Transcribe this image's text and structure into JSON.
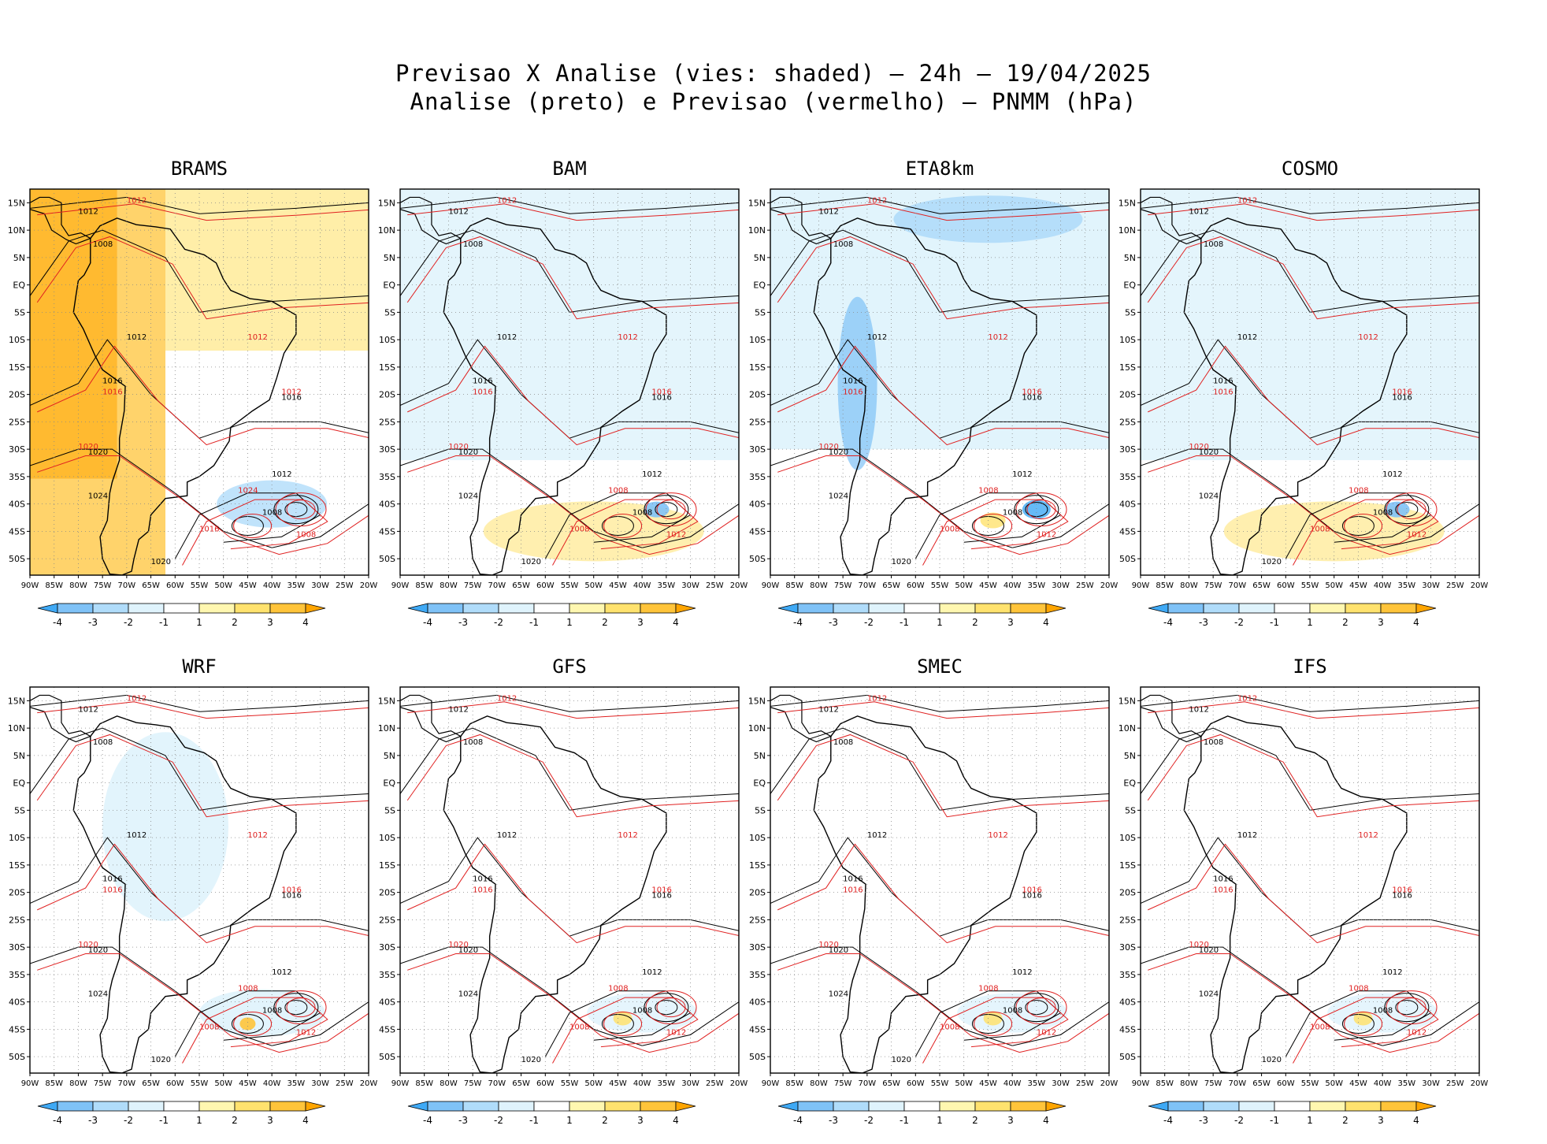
{
  "header": {
    "title_line1": "Previsao X Analise (vies: shaded) – 24h – 19/04/2025",
    "title_line2": "Analise (preto) e Previsao (vermelho) – PNMM (hPa)"
  },
  "axes": {
    "lat_labels": [
      "15N",
      "10N",
      "5N",
      "EQ",
      "5S",
      "10S",
      "15S",
      "20S",
      "25S",
      "30S",
      "35S",
      "40S",
      "45S",
      "50S"
    ],
    "lon_labels": [
      "90W",
      "85W",
      "80W",
      "75W",
      "70W",
      "65W",
      "60W",
      "55W",
      "50W",
      "45W",
      "40W",
      "35W",
      "30W",
      "25W",
      "20W"
    ]
  },
  "colorbar": {
    "labels": [
      "-4",
      "-3",
      "-2",
      "-1",
      "1",
      "2",
      "3",
      "4"
    ],
    "colors": [
      "#3fa9f5",
      "#7fc2f7",
      "#b0dcfa",
      "#dff3fc",
      "#ffffff",
      "#fff7b0",
      "#ffe26e",
      "#ffc43a",
      "#ffa500"
    ]
  },
  "styles": {
    "analysis_color": "#000000",
    "forecast_color": "#e02020",
    "grid_color": "#888888"
  },
  "panels": [
    {
      "name": "BRAMS",
      "bias": "warm-strong",
      "labels_black": [
        "1012",
        "1008",
        "1012",
        "1016",
        "1020",
        "1024",
        "1008",
        "1012",
        "1016",
        "1020"
      ],
      "labels_red": [
        "1012",
        "1016",
        "1020",
        "1024",
        "1008",
        "1012",
        "1016",
        "1012"
      ]
    },
    {
      "name": "BAM",
      "bias": "cool-light",
      "labels_black": [
        "1012",
        "1008",
        "1012",
        "1016",
        "1020",
        "1024",
        "1008",
        "1012",
        "1016",
        "1020"
      ],
      "labels_red": [
        "1012",
        "1016",
        "1020",
        "1008",
        "1012",
        "1016",
        "1008",
        "1012"
      ]
    },
    {
      "name": "ETA8km",
      "bias": "cool-strong",
      "labels_black": [
        "1012",
        "1008",
        "1012",
        "1016",
        "1020",
        "1024",
        "1008",
        "1012",
        "1016",
        "1020"
      ],
      "labels_red": [
        "1012",
        "1016",
        "1020",
        "1008",
        "1012",
        "1016",
        "1008",
        "1012"
      ]
    },
    {
      "name": "COSMO",
      "bias": "cool-light",
      "labels_black": [
        "1012",
        "1008",
        "1012",
        "1016",
        "1020",
        "1024",
        "1008",
        "1012",
        "1016",
        "1020"
      ],
      "labels_red": [
        "1012",
        "1016",
        "1020",
        "1008",
        "1012",
        "1016",
        "1008",
        "1012"
      ]
    },
    {
      "name": "WRF",
      "bias": "mixed",
      "labels_black": [
        "1012",
        "1008",
        "1012",
        "1016",
        "1020",
        "1024",
        "1008",
        "1012",
        "1016",
        "1020"
      ],
      "labels_red": [
        "1012",
        "1016",
        "1020",
        "1008",
        "1012",
        "1016",
        "1008",
        "1012"
      ]
    },
    {
      "name": "GFS",
      "bias": "neutral",
      "labels_black": [
        "1012",
        "1008",
        "1012",
        "1016",
        "1020",
        "1024",
        "1008",
        "1012",
        "1016",
        "1020"
      ],
      "labels_red": [
        "1012",
        "1016",
        "1020",
        "1008",
        "1012",
        "1016",
        "1008",
        "1012"
      ]
    },
    {
      "name": "SMEC",
      "bias": "neutral",
      "labels_black": [
        "1012",
        "1008",
        "1012",
        "1016",
        "1020",
        "1024",
        "1008",
        "1012",
        "1016",
        "1020"
      ],
      "labels_red": [
        "1012",
        "1016",
        "1020",
        "1008",
        "1012",
        "1016",
        "1008",
        "1012"
      ]
    },
    {
      "name": "IFS",
      "bias": "neutral",
      "labels_black": [
        "1012",
        "1008",
        "1012",
        "1016",
        "1020",
        "1024",
        "1008",
        "1012",
        "1016",
        "1020"
      ],
      "labels_red": [
        "1012",
        "1016",
        "1020",
        "1008",
        "1012",
        "1016",
        "1008",
        "1012"
      ]
    }
  ]
}
